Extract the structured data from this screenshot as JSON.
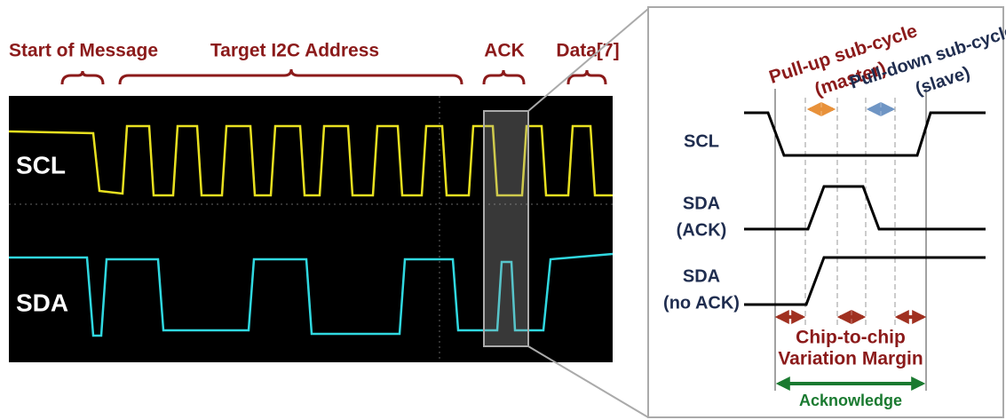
{
  "scope": {
    "labels": [
      "Start of Message",
      "Target I2C Address",
      "ACK",
      "Data[7]"
    ],
    "scl": "SCL",
    "sda": "SDA"
  },
  "timing": {
    "pullup": [
      "Pull-up sub-cycle",
      "(master)"
    ],
    "pulldown": [
      "Pull-down sub-cycle",
      "(slave)"
    ],
    "scl": "SCL",
    "sda_ack": [
      "SDA",
      "(ACK)"
    ],
    "sda_noack": [
      "SDA",
      "(no ACK)"
    ],
    "margin": [
      "Chip-to-chip",
      "Variation Margin"
    ],
    "acknowledge": "Acknowledge"
  }
}
